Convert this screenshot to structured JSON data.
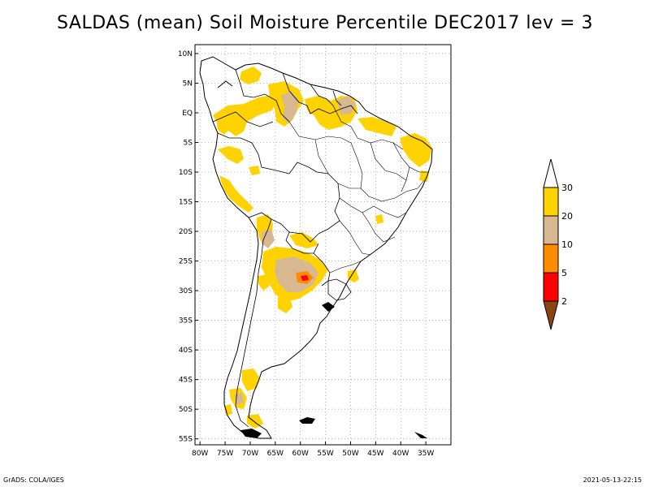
{
  "title": "SALDAS (mean) Soil Moisture Percentile DEC2017 lev = 3",
  "footer": {
    "left": "GrADS: COLA/IGES",
    "right": "2021-05-13-22:15"
  },
  "map": {
    "lat_ticks": [
      "10N",
      "5N",
      "EQ",
      "5S",
      "10S",
      "15S",
      "20S",
      "25S",
      "30S",
      "35S",
      "40S",
      "45S",
      "50S",
      "55S"
    ],
    "lon_ticks": [
      "80W",
      "75W",
      "70W",
      "65W",
      "60W",
      "55W",
      "50W",
      "45W",
      "40W",
      "35W"
    ],
    "lat_range": [
      -56,
      11.5
    ],
    "lon_range": [
      -81,
      -30
    ]
  },
  "legend": {
    "labels": [
      "30",
      "20",
      "10",
      "5",
      "2"
    ],
    "colors": {
      "above30": "#ffffff",
      "c20_30": "#ffd200",
      "c10_20": "#d7b890",
      "c5_10": "#ff8c00",
      "c2_5": "#ff0000",
      "below2": "#8b4513"
    }
  },
  "palette": {
    "yellow": "#ffd200",
    "tan": "#d7b890",
    "orange": "#ff8c00",
    "red": "#ff0000",
    "brown": "#8b4513",
    "grid": "#aaaaaa"
  }
}
